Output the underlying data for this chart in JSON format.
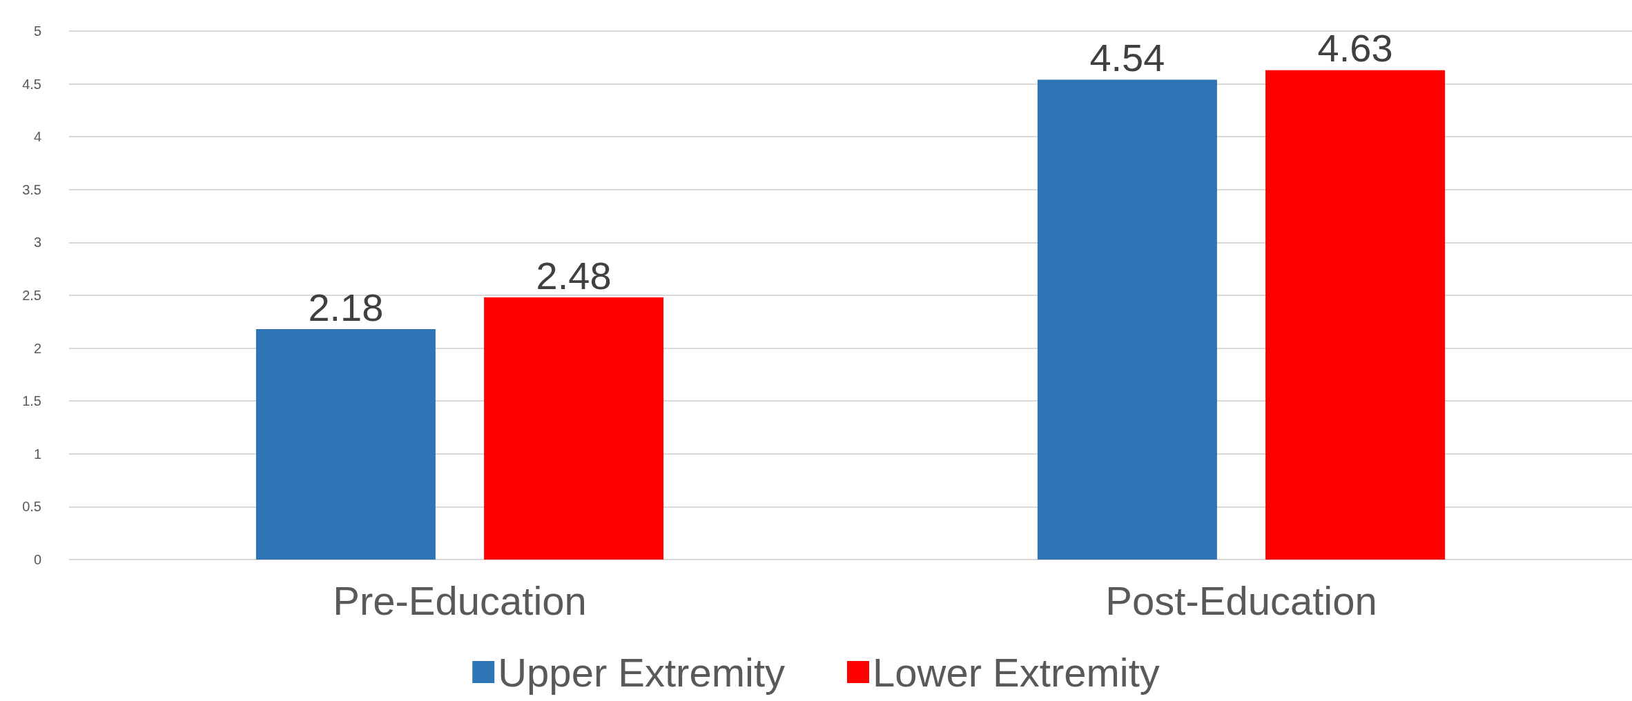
{
  "chart_data": {
    "type": "bar",
    "categories": [
      "Pre-Education",
      "Post-Education"
    ],
    "series": [
      {
        "name": "Upper Extremity",
        "color": "#2e75b6",
        "values": [
          2.18,
          4.54
        ]
      },
      {
        "name": "Lower Extremity",
        "color": "#ff0000",
        "values": [
          2.48,
          4.63
        ]
      }
    ],
    "ylim": [
      0,
      5
    ],
    "yticks": [
      0,
      0.5,
      1,
      1.5,
      2,
      2.5,
      3,
      3.5,
      4,
      4.5,
      5
    ],
    "grid": "y",
    "legend": "bottom",
    "data_labels": true
  }
}
